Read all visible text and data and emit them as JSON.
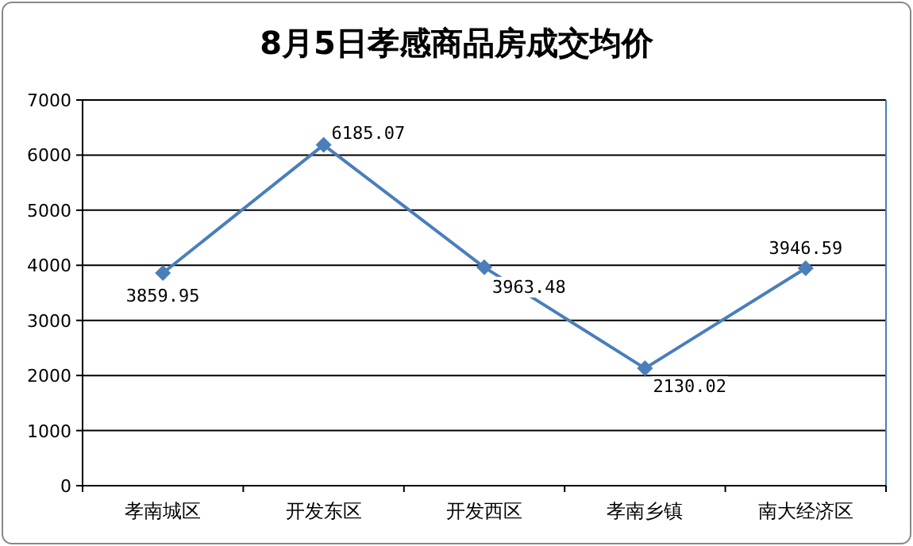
{
  "chart_data": {
    "type": "line",
    "title": "8月5日孝感商品房成交均价",
    "categories": [
      "孝南城区",
      "开发东区",
      "开发西区",
      "孝南乡镇",
      "南大经济区"
    ],
    "values": [
      3859.95,
      6185.07,
      3963.48,
      2130.02,
      3946.59
    ],
    "color": "#4a7ebb",
    "marker": "diamond",
    "data_labels": true,
    "grid": "y",
    "ylim": [
      0,
      7000
    ],
    "yticks": [
      0,
      1000,
      2000,
      3000,
      4000,
      5000,
      6000,
      7000
    ]
  }
}
